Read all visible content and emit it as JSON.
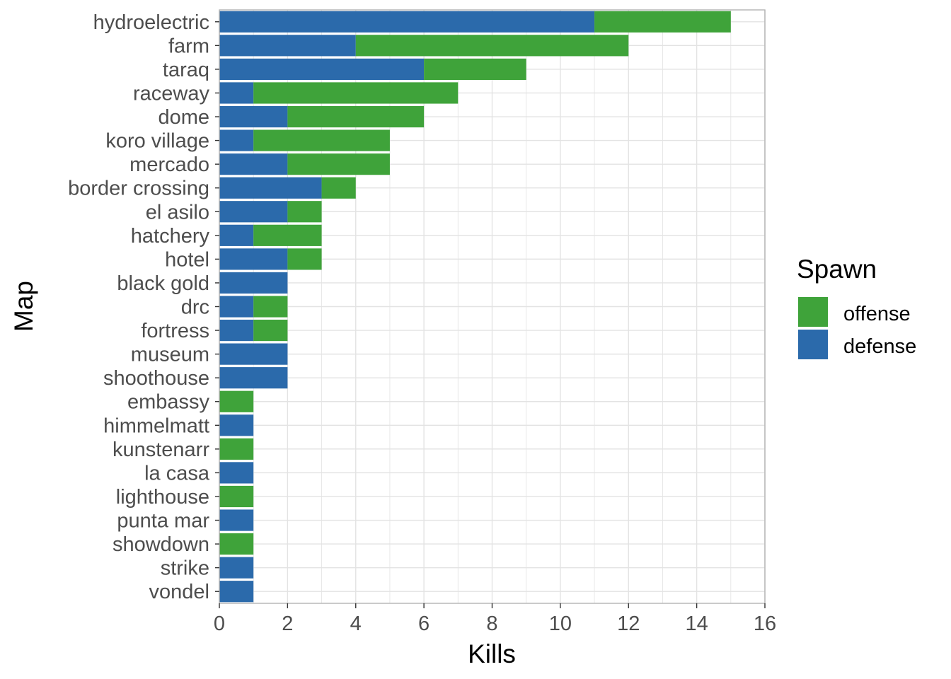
{
  "chart_data": {
    "type": "bar",
    "orientation": "horizontal",
    "stacked": true,
    "xlabel": "Kills",
    "ylabel": "Map",
    "xlim": [
      0,
      16
    ],
    "x_ticks": [
      "0",
      "2",
      "4",
      "6",
      "8",
      "10",
      "12",
      "14",
      "16"
    ],
    "grid": true,
    "categories": [
      "hydroelectric",
      "farm",
      "taraq",
      "raceway",
      "dome",
      "koro village",
      "mercado",
      "border crossing",
      "el asilo",
      "hatchery",
      "hotel",
      "black gold",
      "drc",
      "fortress",
      "museum",
      "shoothouse",
      "embassy",
      "himmelmatt",
      "kunstenarr",
      "la casa",
      "lighthouse",
      "punta mar",
      "showdown",
      "strike",
      "vondel"
    ],
    "series": [
      {
        "name": "defense",
        "color": "#2b6aab",
        "values": [
          11,
          4,
          6,
          1,
          2,
          1,
          2,
          3,
          2,
          1,
          2,
          2,
          1,
          1,
          2,
          2,
          0,
          1,
          0,
          1,
          0,
          1,
          0,
          1,
          1
        ]
      },
      {
        "name": "offense",
        "color": "#3fa33a",
        "values": [
          4,
          8,
          3,
          6,
          4,
          4,
          3,
          1,
          1,
          2,
          1,
          0,
          1,
          1,
          0,
          0,
          1,
          0,
          1,
          0,
          1,
          0,
          1,
          0,
          0
        ]
      }
    ],
    "legend": {
      "title": "Spawn",
      "position": "right",
      "entries": [
        {
          "label": "offense",
          "color": "#3fa33a"
        },
        {
          "label": "defense",
          "color": "#2b6aab"
        }
      ]
    }
  }
}
